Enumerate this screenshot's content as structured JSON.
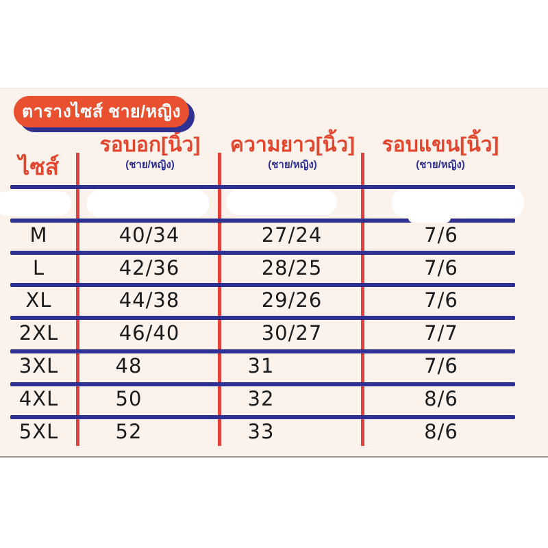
{
  "badge": {
    "label": "ตารางไซส์ ชาย/หญิง"
  },
  "table": {
    "size_header": "ไซส์",
    "columns": [
      {
        "title": "รอบอก[นิ้ว]",
        "subtitle": "(ชาย/หญิง)"
      },
      {
        "title": "ความยาว[นิ้ว]",
        "subtitle": "(ชาย/หญิง)"
      },
      {
        "title": "รอบแขน[นิ้ว]",
        "subtitle": "(ชาย/หญิง)"
      }
    ],
    "erased_first_row": true
  },
  "chart_data": {
    "type": "table",
    "title": "ตารางไซส์ ชาย/หญิง",
    "columns": [
      "ไซส์",
      "รอบอก[นิ้ว] (ชาย/หญิง)",
      "ความยาว[นิ้ว] (ชาย/หญิง)",
      "รอบแขน[นิ้ว] (ชาย/หญิง)"
    ],
    "rows": [
      [
        "M",
        "40/34",
        "27/24",
        "7/6"
      ],
      [
        "L",
        "42/36",
        "28/25",
        "7/6"
      ],
      [
        "XL",
        "44/38",
        "29/26",
        "7/6"
      ],
      [
        "2XL",
        "46/40",
        "30/27",
        "7/7"
      ],
      [
        "3XL",
        "48",
        "31",
        "7/6"
      ],
      [
        "4XL",
        "50",
        "32",
        "8/6"
      ],
      [
        "5XL",
        "52",
        "33",
        "8/6"
      ]
    ],
    "notes": "first data row below the header is whited-out / erased in the image"
  },
  "colors": {
    "badge_orange": "#e8502f",
    "header_orange": "#e2462e",
    "navy": "#2e3192",
    "red_line": "#e2423b",
    "panel_cream": "#fbf2ec"
  }
}
